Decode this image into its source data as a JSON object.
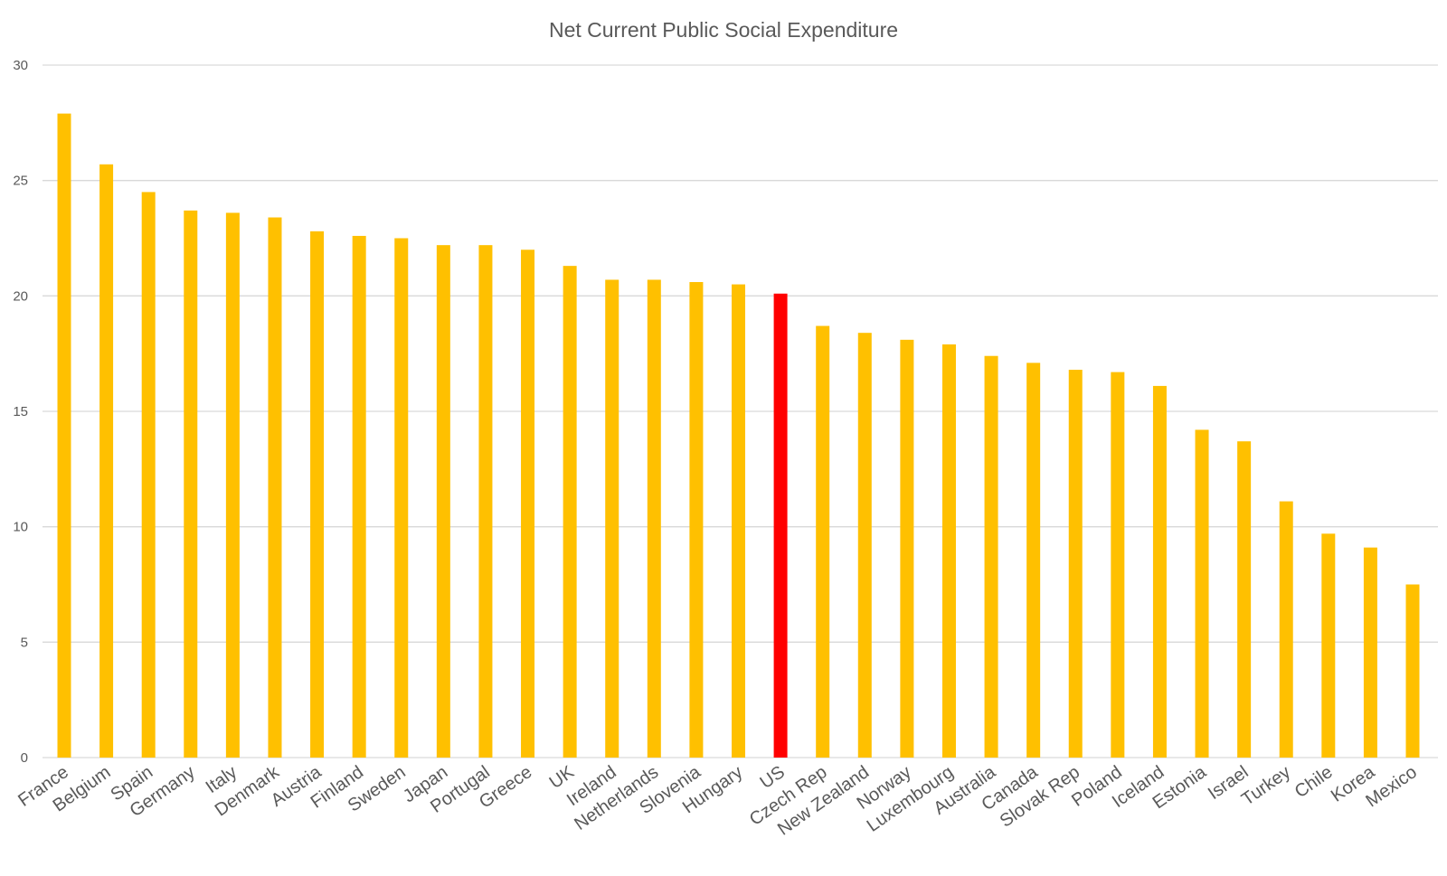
{
  "colors": {
    "bar": "#FFC000",
    "highlight": "#FF0000",
    "grid": "#D9D9D9",
    "text": "#595959"
  },
  "chart_data": {
    "type": "bar",
    "title": "Net Current Public Social Expenditure",
    "xlabel": "",
    "ylabel": "",
    "ylim": [
      0,
      30
    ],
    "yticks": [
      0,
      5,
      10,
      15,
      20,
      25,
      30
    ],
    "grid": true,
    "highlight": "US",
    "categories": [
      "France",
      "Belgium",
      "Spain",
      "Germany",
      "Italy",
      "Denmark",
      "Austria",
      "Finland",
      "Sweden",
      "Japan",
      "Portugal",
      "Greece",
      "UK",
      "Ireland",
      "Netherlands",
      "Slovenia",
      "Hungary",
      "US",
      "Czech Rep",
      "New Zealand",
      "Norway",
      "Luxembourg",
      "Australia",
      "Canada",
      "Slovak Rep",
      "Poland",
      "Iceland",
      "Estonia",
      "Israel",
      "Turkey",
      "Chile",
      "Korea",
      "Mexico"
    ],
    "values": [
      27.9,
      25.7,
      24.5,
      23.7,
      23.6,
      23.4,
      22.8,
      22.6,
      22.5,
      22.2,
      22.2,
      22.0,
      21.3,
      20.7,
      20.7,
      20.6,
      20.5,
      20.1,
      18.7,
      18.4,
      18.1,
      17.9,
      17.4,
      17.1,
      16.8,
      16.7,
      16.1,
      14.2,
      13.7,
      11.1,
      9.7,
      9.1,
      7.5
    ]
  }
}
